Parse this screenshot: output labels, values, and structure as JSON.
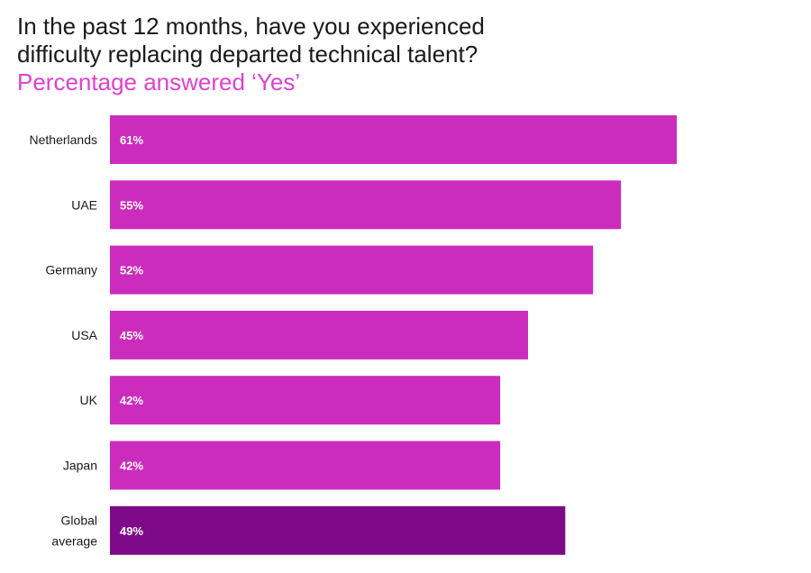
{
  "title_lines": [
    "In the past 12 months, have you experienced",
    "difficulty replacing departed technical talent?"
  ],
  "subtitle": "Percentage answered ‘Yes’",
  "colors": {
    "bar": "#cc2cbd",
    "highlight_bar": "#7e0a8a",
    "subtitle": "#e040d0"
  },
  "chart_data": {
    "type": "bar",
    "orientation": "horizontal",
    "title": "In the past 12 months, have you experienced difficulty replacing departed technical talent?",
    "subtitle": "Percentage answered ‘Yes’",
    "categories": [
      [
        "Netherlands"
      ],
      [
        "UAE"
      ],
      [
        "Germany"
      ],
      [
        "USA"
      ],
      [
        "UK"
      ],
      [
        "Japan"
      ],
      [
        "Global",
        "average"
      ]
    ],
    "values": [
      61,
      55,
      52,
      45,
      42,
      42,
      49
    ],
    "value_labels": [
      "61%",
      "55%",
      "52%",
      "45%",
      "42%",
      "42%",
      "49%"
    ],
    "highlight": [
      false,
      false,
      false,
      false,
      false,
      false,
      true
    ],
    "xlim": [
      0,
      61
    ],
    "grid": false,
    "legend": "none"
  }
}
